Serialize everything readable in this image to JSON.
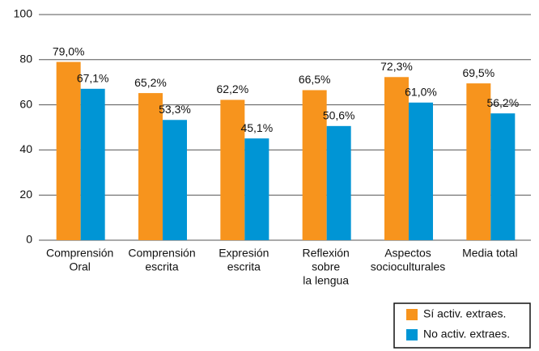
{
  "chart_data": {
    "type": "bar",
    "categories": [
      [
        "Comprensión",
        "Oral"
      ],
      [
        "Comprensión",
        "escrita"
      ],
      [
        "Expresión",
        "escrita"
      ],
      [
        "Reflexión",
        "sobre",
        "la lengua"
      ],
      [
        "Aspectos",
        "socioculturales"
      ],
      [
        "Media total"
      ]
    ],
    "series": [
      {
        "name": "Sí activ. extraes.",
        "color": "#f7941d",
        "values": [
          79.0,
          65.2,
          62.2,
          66.5,
          72.3,
          69.5
        ],
        "value_labels": [
          "79,0%",
          "65,2%",
          "62,2%",
          "66,5%",
          "72,3%",
          "69,5%"
        ]
      },
      {
        "name": "No activ. extraes.",
        "color": "#0095d5",
        "values": [
          67.1,
          53.3,
          45.1,
          50.6,
          61.0,
          56.2
        ],
        "value_labels": [
          "67,1%",
          "53,3%",
          "45,1%",
          "50,6%",
          "61,0%",
          "56,2%"
        ]
      }
    ],
    "ylim": [
      0,
      100
    ],
    "yticks": [
      0,
      20,
      40,
      60,
      80,
      100
    ],
    "grid": true,
    "legend": "bottom-right"
  }
}
